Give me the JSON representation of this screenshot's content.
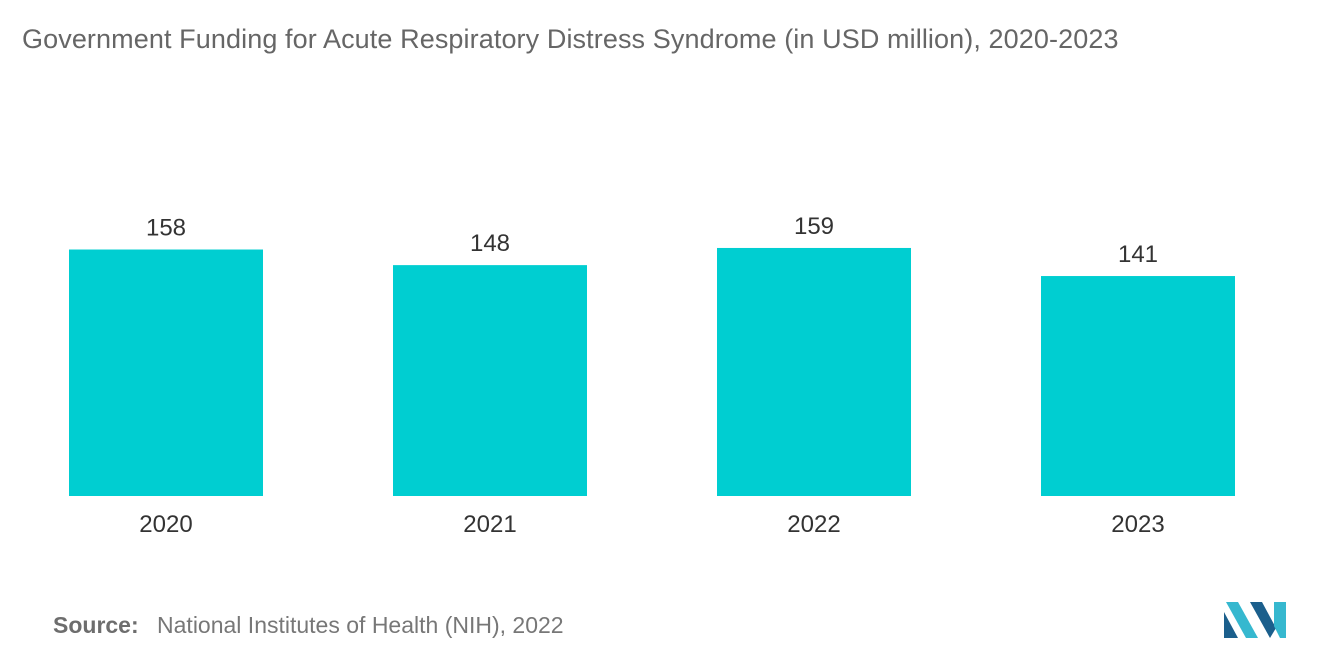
{
  "chart_data": {
    "type": "bar",
    "title": "Government Funding for Acute Respiratory Distress Syndrome (in USD million), 2020-2023",
    "categories": [
      "2020",
      "2021",
      "2022",
      "2023"
    ],
    "values": [
      158,
      148,
      159,
      141
    ],
    "xlabel": "",
    "ylabel": "",
    "ylim": [
      0,
      160
    ],
    "grid": false,
    "legend": "none",
    "bar_color": "#00CED1"
  },
  "source": {
    "label": "Source:",
    "text": "National Institutes of Health (NIH), 2022"
  },
  "logo": {
    "icon": "mordor-intelligence-logo-icon",
    "colors": [
      "#1b5f8c",
      "#36b8cf"
    ]
  }
}
